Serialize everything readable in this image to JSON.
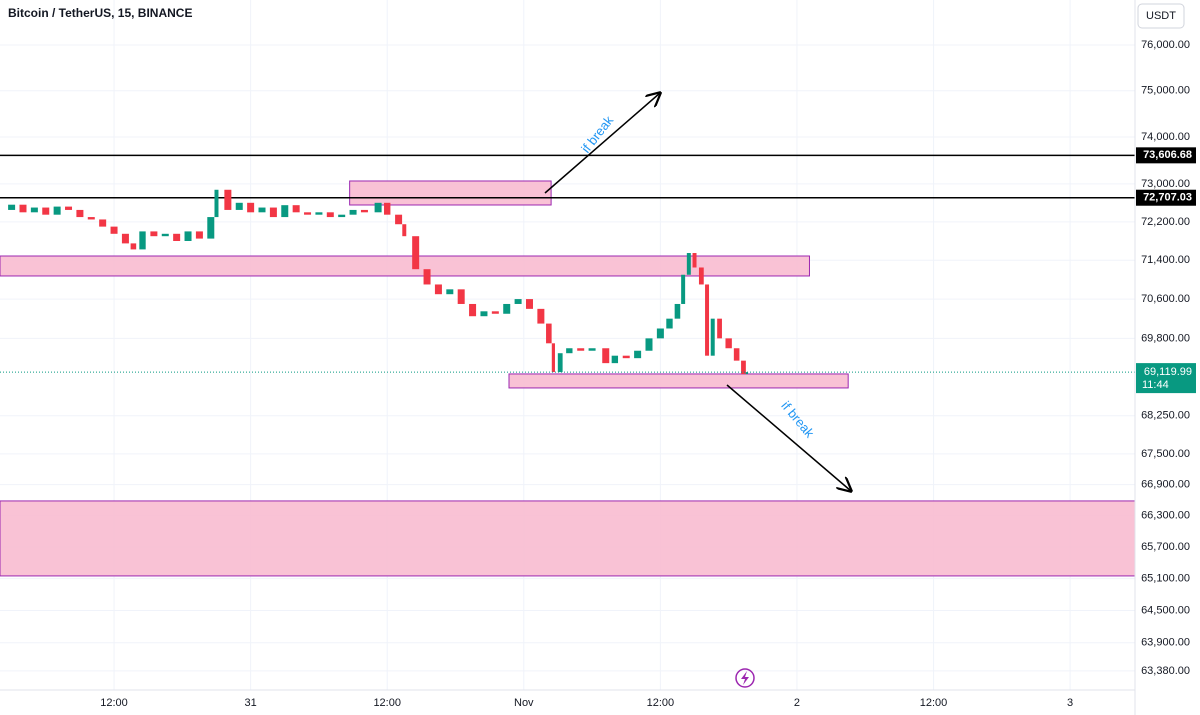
{
  "chart_data": {
    "type": "candlestick",
    "title": "Bitcoin / TetherUS, 15, BINANCE",
    "currency": "USDT",
    "log_scale": true,
    "grid": true,
    "colors": {
      "up": "#089981",
      "down": "#f23645",
      "zone_fill": "#f8bbd0",
      "zone_edge": "#9c27b0",
      "level": "#000000"
    },
    "x": [
      2,
      3,
      4,
      5,
      6,
      7,
      8,
      9,
      10,
      11,
      12,
      13,
      13.7,
      14.5,
      15.5,
      16.5,
      17.5,
      18.5,
      19.5,
      20.5,
      21,
      22,
      23,
      24,
      25,
      26,
      27,
      28,
      29,
      30,
      31,
      32,
      33,
      34,
      35.2,
      36,
      37,
      37.5,
      38.5,
      39.5,
      40.5,
      41.5,
      42.5,
      43.5,
      44.5,
      45.5,
      46.5,
      47.5,
      48.5,
      49.5,
      50.2,
      50.6,
      51.2,
      52,
      53,
      54,
      55.2,
      56,
      57,
      58,
      59,
      60,
      60.8,
      61.5,
      62,
      62.5,
      63,
      63.6,
      64.1,
      64.6,
      65.2,
      66,
      66.7,
      67.3,
      67.6
    ],
    "values": [
      72450,
      72560,
      72400,
      72500,
      72350,
      72520,
      72450,
      72300,
      72250,
      72100,
      71950,
      71750,
      71625,
      72000,
      71900,
      71950,
      71800,
      72000,
      71850,
      72300,
      72875,
      72450,
      72600,
      72400,
      72500,
      72300,
      72550,
      72400,
      72350,
      72400,
      72300,
      72350,
      72450,
      72400,
      72600,
      72350,
      72150,
      71900,
      71215,
      70900,
      70700,
      70800,
      70500,
      70250,
      70350,
      70300,
      70500,
      70600,
      70400,
      70100,
      69700,
      69120,
      69500,
      69600,
      69550,
      69600,
      69300,
      69450,
      69400,
      69550,
      69800,
      70000,
      70200,
      70500,
      71100,
      71550,
      71250,
      70900,
      69450,
      70200,
      69800,
      69600,
      69350,
      69080,
      69119.99
    ],
    "xlim": [
      1.98,
      101.7
    ],
    "xticks": [
      {
        "value": 12,
        "label": "12:00"
      },
      {
        "value": 24,
        "label": "31"
      },
      {
        "value": 36,
        "label": "12:00"
      },
      {
        "value": 48,
        "label": "Nov"
      },
      {
        "value": 60,
        "label": "12:00"
      },
      {
        "value": 72,
        "label": "2"
      },
      {
        "value": 84,
        "label": "12:00"
      },
      {
        "value": 96,
        "label": "3"
      }
    ],
    "ylim": [
      63030,
      77000
    ],
    "yticks": [
      {
        "value": 76000,
        "label": "76,000.00"
      },
      {
        "value": 75000,
        "label": "75,000.00"
      },
      {
        "value": 74000,
        "label": "74,000.00"
      },
      {
        "value": 73000,
        "label": "73,000.00"
      },
      {
        "value": 72200,
        "label": "72,200.00"
      },
      {
        "value": 71400,
        "label": "71,400.00"
      },
      {
        "value": 70600,
        "label": "70,600.00"
      },
      {
        "value": 69800,
        "label": "69,800.00"
      },
      {
        "value": 68250,
        "label": "68,250.00"
      },
      {
        "value": 67500,
        "label": "67,500.00"
      },
      {
        "value": 66900,
        "label": "66,900.00"
      },
      {
        "value": 66300,
        "label": "66,300.00"
      },
      {
        "value": 65700,
        "label": "65,700.00"
      },
      {
        "value": 65100,
        "label": "65,100.00"
      },
      {
        "value": 64500,
        "label": "64,500.00"
      },
      {
        "value": 63900,
        "label": "63,900.00"
      },
      {
        "value": 63380,
        "label": "63,380.00"
      }
    ],
    "levels": [
      {
        "value": 73606.68,
        "label": "73,606.68"
      },
      {
        "value": 72707.03,
        "label": "72,707.03"
      }
    ],
    "zones": [
      {
        "x": [
          32.7,
          50.4
        ],
        "y": [
          72554,
          73061
        ]
      },
      {
        "x": [
          1.98,
          73.1
        ],
        "y": [
          71075,
          71488
        ]
      },
      {
        "x": [
          46.7,
          76.5
        ],
        "y": [
          68803,
          69083
        ]
      },
      {
        "x": [
          1.98,
          101.7
        ],
        "y": [
          65151,
          66584
        ]
      }
    ],
    "last_price": {
      "value": 69119.99,
      "label": "69,119.99"
    },
    "countdown": "11:44",
    "annotations": [
      "if break",
      "if break"
    ]
  }
}
